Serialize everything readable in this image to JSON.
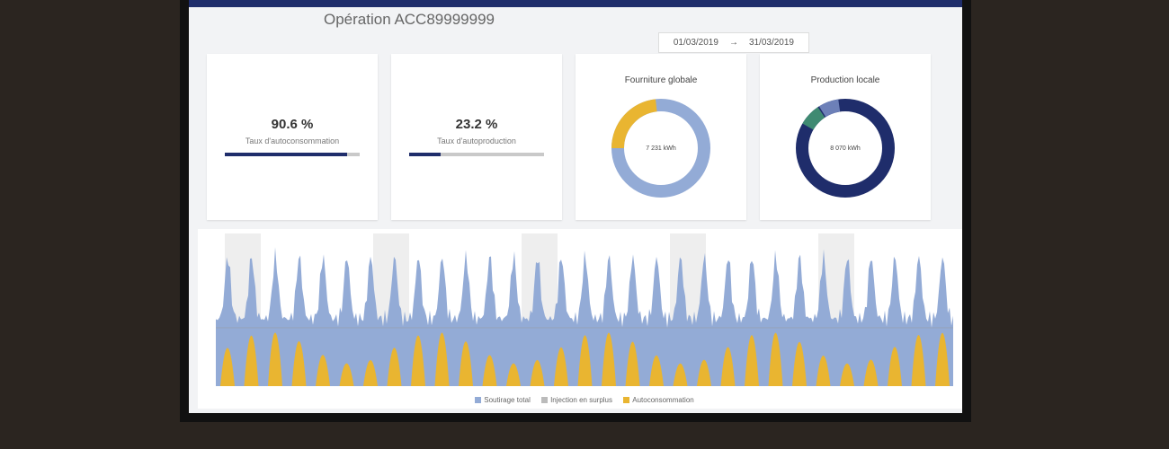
{
  "header": {
    "title": "Opération ACC89999999",
    "date_from": "01/03/2019",
    "arrow": "→",
    "date_to": "31/03/2019"
  },
  "kpis": [
    {
      "value": 90.6,
      "value_label": "90.6 %",
      "label": "Taux d'autoconsommation"
    },
    {
      "value": 23.2,
      "value_label": "23.2 %",
      "label": "Taux d'autoproduction"
    }
  ],
  "donuts": [
    {
      "title": "Fourniture globale",
      "center": "7 231 kWh"
    },
    {
      "title": "Production locale",
      "center": "8 070 kWh"
    }
  ],
  "legend": [
    "Soutirage total",
    "Injection en surplus",
    "Autoconsommation"
  ]
}
